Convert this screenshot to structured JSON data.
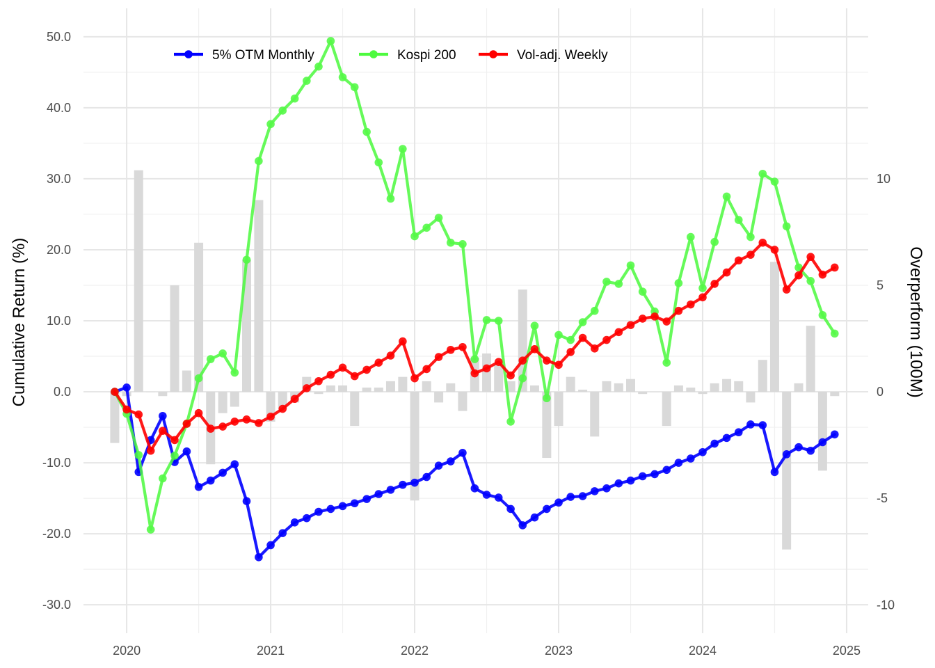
{
  "chart_data": {
    "type": "line",
    "xlabel": "",
    "ylabel": "Cumulative Return (%)",
    "y2label": "Overperform (100M)",
    "x_ticks": [
      "2020",
      "2021",
      "2022",
      "2023",
      "2024",
      "2025"
    ],
    "x_tick_values": [
      2020.0,
      2021.0,
      2022.0,
      2023.0,
      2024.0,
      2025.0
    ],
    "xlim": [
      2019.7,
      2025.15
    ],
    "y_ticks": [
      "50.0",
      "40.0",
      "30.0",
      "20.0",
      "10.0",
      "0.0",
      "-10.0",
      "-20.0",
      "-30.0"
    ],
    "y_tick_values": [
      50,
      40,
      30,
      20,
      10,
      0,
      -10,
      -20,
      -30
    ],
    "ylim": [
      -34,
      54
    ],
    "y2_ticks": [
      "10",
      "5",
      "0",
      "-5",
      "-10"
    ],
    "y2_tick_values": [
      10,
      5,
      0,
      -5,
      -10
    ],
    "y2lim": [
      -11.33,
      18
    ],
    "grid": true,
    "legend_position": "top-left",
    "x": [
      2019.917,
      2020.0,
      2020.083,
      2020.167,
      2020.25,
      2020.333,
      2020.417,
      2020.5,
      2020.583,
      2020.667,
      2020.75,
      2020.833,
      2020.917,
      2021.0,
      2021.083,
      2021.167,
      2021.25,
      2021.333,
      2021.417,
      2021.5,
      2021.583,
      2021.667,
      2021.75,
      2021.833,
      2021.917,
      2022.0,
      2022.083,
      2022.167,
      2022.25,
      2022.333,
      2022.417,
      2022.5,
      2022.583,
      2022.667,
      2022.75,
      2022.833,
      2022.917,
      2023.0,
      2023.083,
      2023.167,
      2023.25,
      2023.333,
      2023.417,
      2023.5,
      2023.583,
      2023.667,
      2023.75,
      2023.833,
      2023.917,
      2024.0,
      2024.083,
      2024.167,
      2024.25,
      2024.333,
      2024.417,
      2024.5,
      2024.583,
      2024.667,
      2024.75,
      2024.833,
      2024.917
    ],
    "series": [
      {
        "name": "5% OTM Monthly",
        "color": "#0000ff",
        "values": [
          0.0,
          0.6,
          -11.3,
          -6.8,
          -3.4,
          -9.9,
          -8.4,
          -13.4,
          -12.5,
          -11.4,
          -10.2,
          -15.4,
          -23.3,
          -21.6,
          -19.9,
          -18.4,
          -17.8,
          -16.9,
          -16.5,
          -16.1,
          -15.7,
          -15.1,
          -14.4,
          -13.8,
          -13.1,
          -12.8,
          -12.0,
          -10.4,
          -9.8,
          -8.6,
          -13.6,
          -14.5,
          -14.9,
          -16.5,
          -18.8,
          -17.7,
          -16.5,
          -15.6,
          -14.8,
          -14.7,
          -14.0,
          -13.6,
          -12.9,
          -12.5,
          -11.9,
          -11.6,
          -11.0,
          -10.0,
          -9.4,
          -8.5,
          -7.3,
          -6.5,
          -5.7,
          -4.6,
          -4.7,
          -11.3,
          -8.8,
          -7.8,
          -8.3,
          -7.1,
          -6.0
        ]
      },
      {
        "name": "Kospi 200",
        "color": "#4dfa3f",
        "values": [
          0.0,
          -3.1,
          -8.9,
          -19.4,
          -12.2,
          -9.0,
          -4.5,
          1.9,
          4.6,
          5.4,
          2.7,
          18.6,
          32.5,
          37.7,
          39.6,
          41.3,
          43.8,
          45.8,
          49.4,
          44.3,
          42.9,
          36.6,
          32.3,
          27.2,
          34.2,
          21.9,
          23.1,
          24.5,
          21.0,
          20.8,
          4.6,
          10.1,
          10.0,
          -4.2,
          1.9,
          9.3,
          -0.9,
          8.0,
          7.3,
          9.8,
          11.4,
          15.5,
          15.2,
          17.8,
          14.1,
          11.3,
          4.1,
          15.3,
          21.8,
          14.6,
          21.1,
          27.5,
          24.2,
          21.8,
          30.7,
          29.6,
          23.3,
          17.5,
          15.6,
          10.8,
          8.2
        ]
      },
      {
        "name": "Vol-adj. Weekly",
        "color": "#ff0000",
        "values": [
          0.0,
          -2.5,
          -3.2,
          -8.3,
          -5.5,
          -6.8,
          -4.5,
          -3.0,
          -5.2,
          -4.9,
          -4.2,
          -3.9,
          -4.4,
          -3.5,
          -2.4,
          -1.0,
          0.5,
          1.5,
          2.4,
          3.4,
          2.2,
          3.1,
          4.1,
          5.1,
          7.1,
          1.9,
          3.2,
          4.9,
          5.9,
          6.3,
          2.6,
          3.3,
          4.2,
          2.3,
          4.4,
          6.0,
          4.4,
          3.8,
          5.6,
          7.6,
          6.1,
          7.3,
          8.4,
          9.4,
          10.3,
          10.6,
          9.9,
          11.4,
          12.3,
          13.3,
          15.2,
          16.8,
          18.5,
          19.3,
          21.0,
          20.0,
          14.4,
          16.4,
          19.0,
          16.5,
          17.5
        ]
      }
    ],
    "bar_series": {
      "name": "Overperform (100M)",
      "axis": "right",
      "color": "#d9d9d9",
      "values": [
        -2.4,
        -0.2,
        10.4,
        0.0,
        -0.2,
        5.0,
        1.0,
        7.0,
        -3.4,
        -1.0,
        -0.7,
        6.2,
        9.0,
        -1.4,
        -0.8,
        -0.5,
        0.7,
        -0.1,
        0.3,
        0.3,
        -1.6,
        0.2,
        0.2,
        0.5,
        0.7,
        -5.1,
        0.5,
        -0.5,
        0.4,
        -0.9,
        1.6,
        1.8,
        1.3,
        0.5,
        4.8,
        0.3,
        -3.1,
        -1.6,
        0.7,
        0.1,
        -2.1,
        0.5,
        0.4,
        0.6,
        -0.1,
        0.0,
        -1.6,
        0.3,
        0.2,
        -0.1,
        0.4,
        0.6,
        0.5,
        -0.5,
        1.5,
        6.1,
        -7.4,
        0.4,
        3.1,
        -3.7,
        -0.2
      ]
    }
  }
}
